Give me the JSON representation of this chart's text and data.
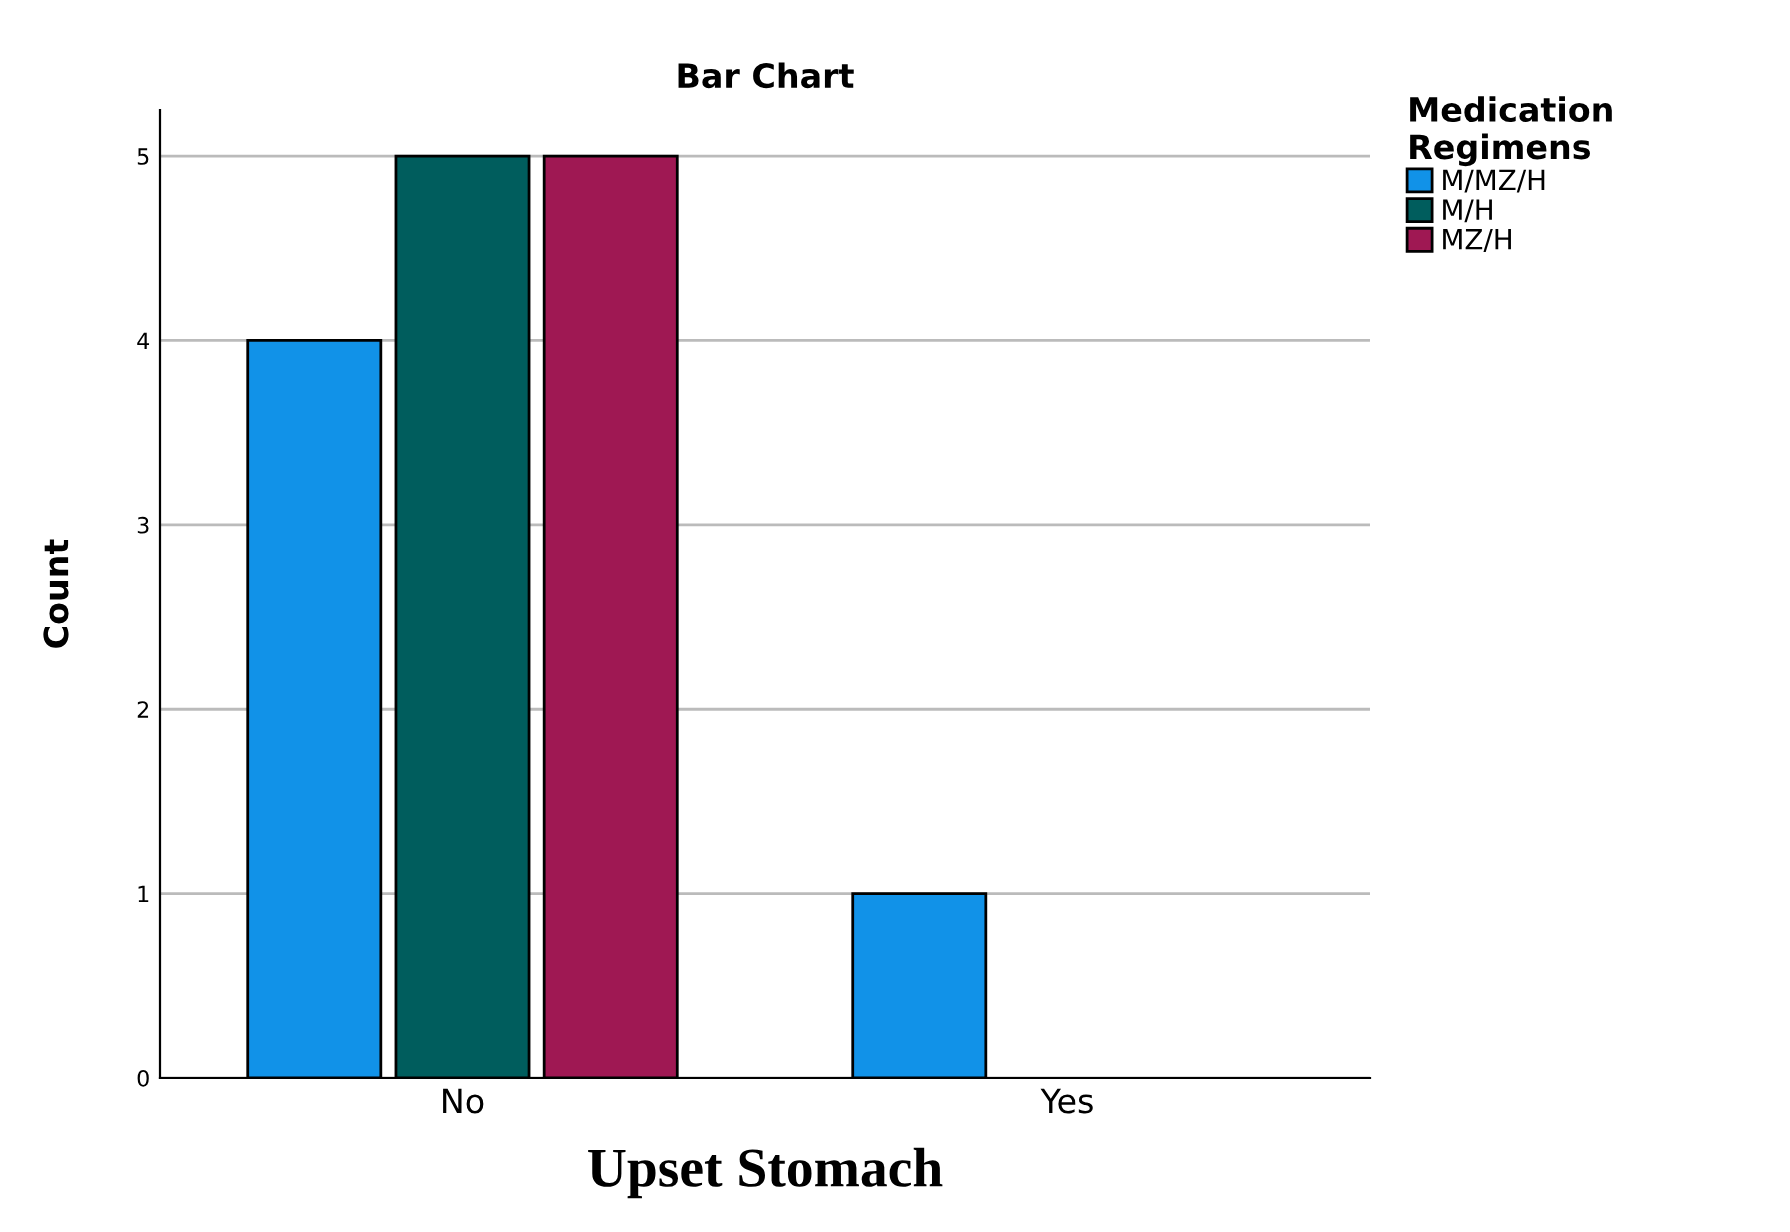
{
  "chart_data": {
    "type": "bar",
    "title": "Bar Chart",
    "xlabel": "Upset Stomach",
    "ylabel": "Count",
    "legend_title": "Medication\nRegimens",
    "categories": [
      "No",
      "Yes"
    ],
    "series": [
      {
        "name": "M/MZ/H",
        "color": "#1192e8",
        "values": [
          4,
          1
        ]
      },
      {
        "name": "M/H",
        "color": "#005d5d",
        "values": [
          5,
          null
        ]
      },
      {
        "name": "MZ/H",
        "color": "#9f1853",
        "values": [
          5,
          null
        ]
      }
    ],
    "ylim": [
      0,
      5.25
    ],
    "yticks": [
      0,
      1,
      2,
      3,
      4,
      5
    ],
    "grid": "y",
    "legend": "top right"
  }
}
